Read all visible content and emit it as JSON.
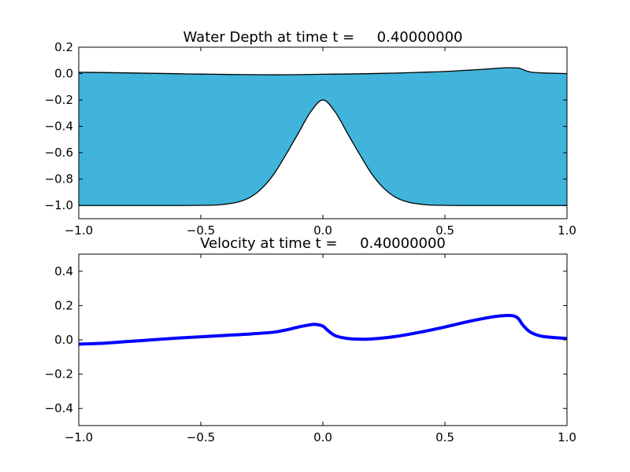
{
  "chart_data": [
    {
      "type": "area",
      "title": "Water Depth at time t =     0.40000000",
      "xlabel": "",
      "ylabel": "",
      "xlim": [
        -1.0,
        1.0
      ],
      "ylim": [
        -1.1,
        0.2
      ],
      "grid": false,
      "xticks": [
        -1.0,
        -0.5,
        0.0,
        0.5,
        1.0
      ],
      "xtick_labels": [
        "−1.0",
        "−0.5",
        "0.0",
        "0.5",
        "1.0"
      ],
      "yticks": [
        0.2,
        0.0,
        -0.2,
        -0.4,
        -0.6,
        -0.8,
        -1.0
      ],
      "ytick_labels": [
        "0.2",
        "0.0",
        "−0.2",
        "−0.4",
        "−0.6",
        "−0.8",
        "−1.0"
      ],
      "fill_color": "#40b4da",
      "line_color": "#000000",
      "series": [
        {
          "role": "surface",
          "x": [
            -1.0,
            -0.9,
            -0.8,
            -0.7,
            -0.6,
            -0.5,
            -0.4,
            -0.3,
            -0.2,
            -0.1,
            0.0,
            0.1,
            0.2,
            0.3,
            0.4,
            0.5,
            0.6,
            0.7,
            0.75,
            0.8,
            0.82,
            0.85,
            0.9,
            1.0
          ],
          "y": [
            0.01,
            0.008,
            0.005,
            0.002,
            -0.001,
            -0.004,
            -0.006,
            -0.008,
            -0.009,
            -0.008,
            -0.005,
            -0.003,
            0.0,
            0.004,
            0.01,
            0.016,
            0.026,
            0.038,
            0.044,
            0.042,
            0.03,
            0.012,
            0.005,
            0.0
          ]
        },
        {
          "role": "bottom",
          "x": [
            -1.0,
            -0.6,
            -0.45,
            -0.4,
            -0.35,
            -0.3,
            -0.25,
            -0.2,
            -0.15,
            -0.1,
            -0.05,
            0.0,
            0.05,
            0.1,
            0.15,
            0.2,
            0.25,
            0.3,
            0.35,
            0.4,
            0.45,
            0.6,
            1.0
          ],
          "y": [
            -1.0,
            -1.0,
            -0.997,
            -0.99,
            -0.975,
            -0.94,
            -0.87,
            -0.76,
            -0.61,
            -0.45,
            -0.29,
            -0.2,
            -0.29,
            -0.45,
            -0.61,
            -0.76,
            -0.87,
            -0.94,
            -0.975,
            -0.99,
            -0.997,
            -1.0,
            -1.0
          ]
        }
      ]
    },
    {
      "type": "line",
      "title": "Velocity at time t =     0.40000000",
      "xlabel": "",
      "ylabel": "",
      "xlim": [
        -1.0,
        1.0
      ],
      "ylim": [
        -0.5,
        0.5
      ],
      "grid": false,
      "xticks": [
        -1.0,
        -0.5,
        0.0,
        0.5,
        1.0
      ],
      "xtick_labels": [
        "−1.0",
        "−0.5",
        "0.0",
        "0.5",
        "1.0"
      ],
      "yticks": [
        0.4,
        0.2,
        0.0,
        -0.2,
        -0.4
      ],
      "ytick_labels": [
        "0.4",
        "0.2",
        "0.0",
        "−0.2",
        "−0.4"
      ],
      "line_color": "#0000ff",
      "series": [
        {
          "x": [
            -1.0,
            -0.9,
            -0.8,
            -0.7,
            -0.6,
            -0.5,
            -0.4,
            -0.3,
            -0.2,
            -0.15,
            -0.1,
            -0.05,
            -0.03,
            0.0,
            0.02,
            0.05,
            0.1,
            0.15,
            0.2,
            0.3,
            0.4,
            0.5,
            0.6,
            0.7,
            0.75,
            0.78,
            0.8,
            0.82,
            0.85,
            0.9,
            1.0
          ],
          "y": [
            -0.025,
            -0.02,
            -0.01,
            0.0,
            0.01,
            0.018,
            0.026,
            0.034,
            0.045,
            0.058,
            0.075,
            0.088,
            0.09,
            0.08,
            0.055,
            0.025,
            0.008,
            0.004,
            0.005,
            0.02,
            0.045,
            0.075,
            0.108,
            0.135,
            0.142,
            0.14,
            0.125,
            0.085,
            0.045,
            0.02,
            0.008
          ]
        }
      ]
    }
  ]
}
